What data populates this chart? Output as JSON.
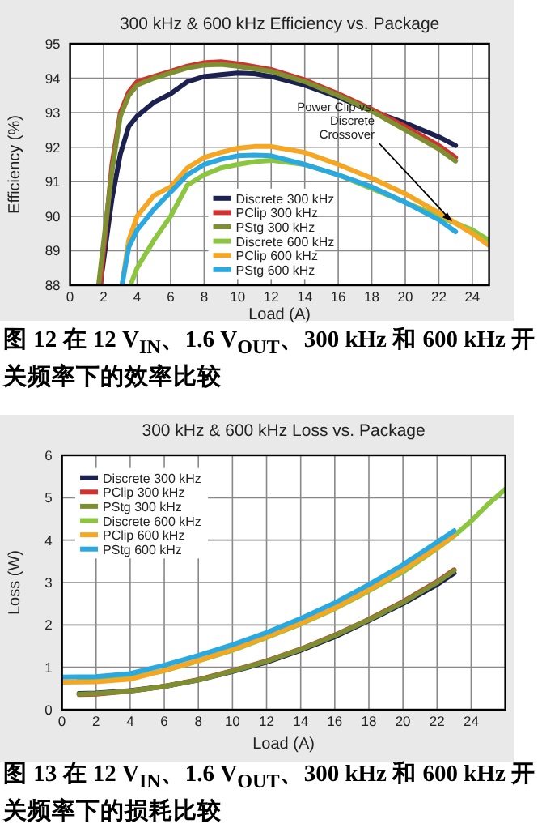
{
  "chart_data": [
    {
      "type": "line",
      "title": "300 kHz & 600 kHz Efficiency vs. Package",
      "xlabel": "Load (A)",
      "ylabel": "Efficiency (%)",
      "xlim": [
        0,
        25
      ],
      "ylim": [
        88,
        95
      ],
      "xticks": [
        0,
        2,
        4,
        6,
        8,
        10,
        12,
        14,
        16,
        18,
        20,
        22,
        24
      ],
      "yticks": [
        88,
        89,
        90,
        91,
        92,
        93,
        94,
        95
      ],
      "grid": true,
      "legend": "bottom",
      "line_style": "solid",
      "marker": "none",
      "annotations": [
        {
          "text": "Power Clip vs. Discrete Crossover",
          "x": 22.8,
          "y": 89.85
        },
        "图 12 在 12 V$_{IN}$、1.6 V$_{OUT}$、300 kHz 和 600 kHz 开关频率下的效率比较"
      ],
      "series": [
        {
          "name": "Discrete 300 kHz",
          "color": "#1c2150",
          "x": [
            1.8,
            2.5,
            3,
            3.5,
            4,
            5,
            6,
            7,
            8,
            9,
            10,
            11,
            12,
            14,
            16,
            18,
            20,
            22,
            23
          ],
          "values": [
            88,
            90.5,
            91.8,
            92.6,
            92.9,
            93.3,
            93.55,
            93.9,
            94.05,
            94.1,
            94.15,
            94.13,
            94.05,
            93.8,
            93.45,
            93.05,
            92.7,
            92.3,
            92.05
          ]
        },
        {
          "name": "PClip 300 kHz",
          "color": "#d2322d",
          "x": [
            1.8,
            2.5,
            3,
            3.5,
            4,
            5,
            6,
            7,
            8,
            9,
            10,
            12,
            14,
            16,
            18,
            20,
            22,
            23
          ],
          "values": [
            88,
            91.5,
            93,
            93.6,
            93.9,
            94.05,
            94.2,
            94.35,
            94.45,
            94.48,
            94.42,
            94.25,
            93.95,
            93.55,
            93.1,
            92.6,
            92.05,
            91.7
          ]
        },
        {
          "name": "PStg 300 kHz",
          "color": "#7d8f30",
          "x": [
            1.7,
            2.5,
            3,
            3.5,
            4,
            5,
            6,
            7,
            8,
            9,
            10,
            12,
            14,
            16,
            18,
            20,
            22,
            23
          ],
          "values": [
            88,
            91.3,
            92.9,
            93.5,
            93.8,
            94,
            94.15,
            94.3,
            94.38,
            94.4,
            94.35,
            94.2,
            93.9,
            93.5,
            93.05,
            92.5,
            91.95,
            91.6
          ]
        },
        {
          "name": "Discrete 600 kHz",
          "color": "#8cc640",
          "x": [
            3.6,
            4,
            5,
            6,
            7,
            8,
            9,
            10,
            11,
            12,
            14,
            16,
            18,
            20,
            22,
            24,
            25
          ],
          "values": [
            88,
            88.5,
            89.3,
            90,
            90.9,
            91.2,
            91.4,
            91.5,
            91.58,
            91.62,
            91.5,
            91.2,
            90.8,
            90.4,
            90,
            89.6,
            89.3
          ]
        },
        {
          "name": "PClip 600 kHz",
          "color": "#f5a623",
          "x": [
            3.1,
            3.5,
            4,
            5,
            6,
            7,
            8,
            9,
            10,
            11,
            12,
            14,
            16,
            18,
            20,
            22,
            24,
            25
          ],
          "values": [
            88,
            89.3,
            90,
            90.6,
            90.85,
            91.4,
            91.7,
            91.85,
            91.97,
            92.02,
            92.02,
            91.85,
            91.5,
            91.1,
            90.65,
            90.1,
            89.5,
            89.15
          ]
        },
        {
          "name": "PStg 600 kHz",
          "color": "#2aa8e0",
          "x": [
            3.1,
            3.5,
            4,
            5,
            6,
            7,
            8,
            9,
            10,
            11,
            12,
            14,
            16,
            18,
            20,
            22,
            23
          ],
          "values": [
            88,
            89.1,
            89.6,
            90.2,
            90.7,
            91.2,
            91.5,
            91.65,
            91.75,
            91.77,
            91.75,
            91.5,
            91.2,
            90.85,
            90.4,
            89.9,
            89.55
          ]
        }
      ]
    },
    {
      "type": "line",
      "title": "300 kHz & 600 kHz Loss vs. Package",
      "xlabel": "Load (A)",
      "ylabel": "Loss (W)",
      "xlim": [
        0,
        26
      ],
      "ylim": [
        0,
        6
      ],
      "xticks": [
        0,
        2,
        4,
        6,
        8,
        10,
        12,
        14,
        16,
        18,
        20,
        22,
        24
      ],
      "yticks": [
        0,
        1,
        2,
        3,
        4,
        5,
        6
      ],
      "grid": true,
      "legend": "top left",
      "line_style": "solid",
      "marker": "none",
      "annotations": [
        "图 13 在 12 V$_{IN}$、1.6 V$_{OUT}$、300 kHz 和 600 kHz 开关频率下的损耗比较"
      ],
      "series": [
        {
          "name": "Discrete 300 kHz",
          "color": "#1c2150",
          "x": [
            1,
            2,
            4,
            6,
            8,
            10,
            12,
            14,
            16,
            18,
            20,
            22,
            23
          ],
          "values": [
            0.38,
            0.39,
            0.45,
            0.55,
            0.7,
            0.9,
            1.12,
            1.4,
            1.72,
            2.1,
            2.5,
            2.95,
            3.22
          ]
        },
        {
          "name": "PClip 300 kHz",
          "color": "#d2322d",
          "x": [
            1,
            2,
            4,
            6,
            8,
            10,
            12,
            14,
            16,
            18,
            20,
            22,
            23
          ],
          "values": [
            0.36,
            0.37,
            0.44,
            0.55,
            0.71,
            0.92,
            1.15,
            1.43,
            1.76,
            2.13,
            2.55,
            3.02,
            3.3
          ]
        },
        {
          "name": "PStg 300 kHz",
          "color": "#7d8f30",
          "x": [
            1,
            2,
            4,
            6,
            8,
            10,
            12,
            14,
            16,
            18,
            20,
            22,
            23
          ],
          "values": [
            0.37,
            0.38,
            0.44,
            0.55,
            0.7,
            0.91,
            1.14,
            1.42,
            1.75,
            2.12,
            2.53,
            3,
            3.28
          ]
        },
        {
          "name": "Discrete 600 kHz",
          "color": "#8cc640",
          "x": [
            1,
            2,
            4,
            6,
            8,
            10,
            12,
            14,
            16,
            18,
            20,
            22,
            23,
            24,
            25,
            26
          ],
          "values": [
            0.7,
            0.7,
            0.75,
            0.92,
            1.15,
            1.4,
            1.7,
            2.02,
            2.38,
            2.8,
            3.25,
            3.8,
            4.1,
            4.45,
            4.85,
            5.2
          ]
        },
        {
          "name": "PClip 600 kHz",
          "color": "#f5a623",
          "x": [
            0,
            2,
            4,
            6,
            8,
            10,
            12,
            14,
            16,
            18,
            20,
            22,
            23
          ],
          "values": [
            0.65,
            0.66,
            0.72,
            0.93,
            1.16,
            1.42,
            1.72,
            2.04,
            2.4,
            2.83,
            3.3,
            3.82,
            4.12
          ]
        },
        {
          "name": "PStg 600 kHz",
          "color": "#2aa8e0",
          "x": [
            0,
            2,
            4,
            6,
            8,
            10,
            12,
            14,
            16,
            18,
            20,
            22,
            23
          ],
          "values": [
            0.77,
            0.78,
            0.85,
            1.05,
            1.28,
            1.53,
            1.82,
            2.15,
            2.52,
            2.95,
            3.42,
            3.95,
            4.22
          ]
        }
      ]
    }
  ]
}
